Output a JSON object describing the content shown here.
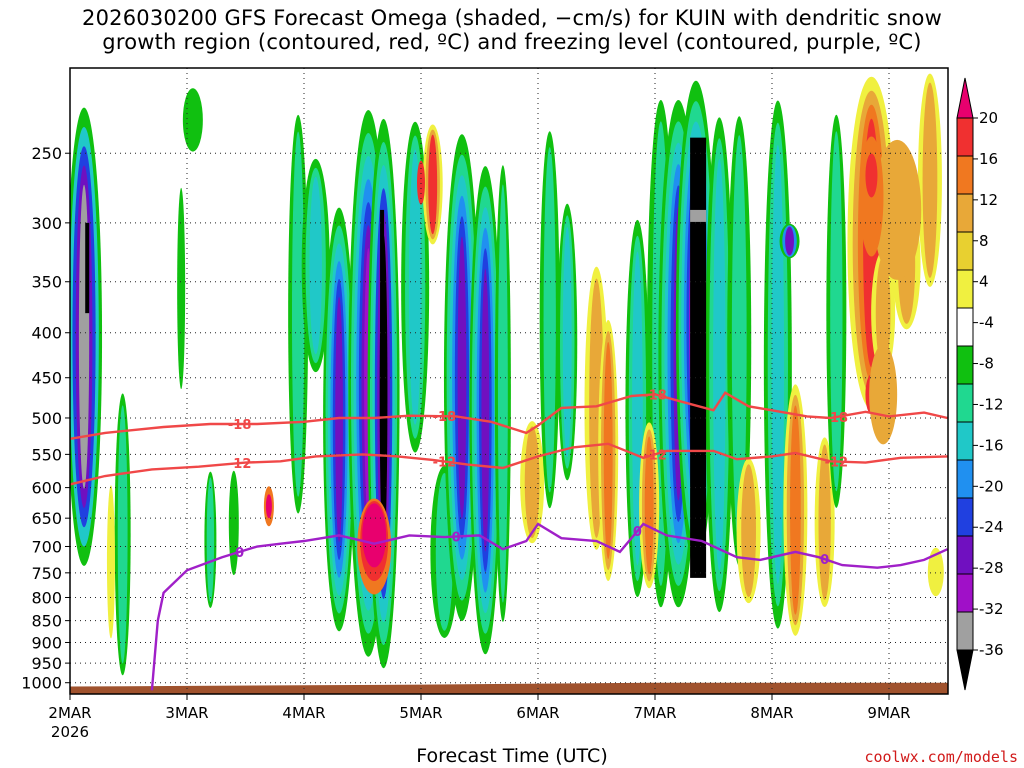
{
  "title_line1": "2026030200 GFS Forecast Omega (shaded, −cm/s) for KUIN with dendritic snow",
  "title_line2": "growth region (contoured, red, ºC) and freezing level (contoured, purple, ºC)",
  "xlabel": "Forecast Time (UTC)",
  "credit": "coolwx.com/models",
  "chart_data": {
    "type": "heatmap",
    "title": "2026030200 GFS Forecast Omega (shaded, −cm/s) for KUIN with dendritic snow growth region (contoured, red, ºC) and freezing level (contoured, purple, ºC)",
    "xlabel": "Forecast Time (UTC)",
    "ylabel": "",
    "x_ticks": [
      {
        "label": "2MAR",
        "sub": "2026",
        "day": 0
      },
      {
        "label": "3MAR",
        "day": 1
      },
      {
        "label": "4MAR",
        "day": 2
      },
      {
        "label": "5MAR",
        "day": 3
      },
      {
        "label": "6MAR",
        "day": 4
      },
      {
        "label": "7MAR",
        "day": 5
      },
      {
        "label": "8MAR",
        "day": 6
      },
      {
        "label": "9MAR",
        "day": 7
      }
    ],
    "xlim_days": [
      0,
      7.5
    ],
    "y_ticks": [
      250,
      300,
      350,
      400,
      450,
      500,
      550,
      600,
      650,
      700,
      750,
      800,
      850,
      900,
      950,
      1000
    ],
    "ylim_hpa": [
      1030,
      200
    ],
    "grid": true,
    "colorbar": {
      "labels": [
        20,
        16,
        12,
        8,
        4,
        -4,
        -8,
        -12,
        -16,
        -20,
        -24,
        -28,
        -32,
        -36
      ],
      "colors": [
        "#e8006e",
        "#f03030",
        "#f07820",
        "#e8a838",
        "#e8d030",
        "#f0f040",
        "#ffffff",
        "#10c010",
        "#20d890",
        "#20c8c8",
        "#2090f0",
        "#2040e0",
        "#7010c0",
        "#a010c8",
        "#a0a0a0",
        "#000000"
      ]
    },
    "contours": [
      {
        "label": "-18",
        "color": "#f04848",
        "points": [
          [
            0,
            528
          ],
          [
            0.3,
            520
          ],
          [
            0.8,
            512
          ],
          [
            1.2,
            508
          ],
          [
            1.6,
            508
          ],
          [
            2.0,
            505
          ],
          [
            2.3,
            500
          ],
          [
            2.6,
            500
          ],
          [
            2.9,
            497
          ],
          [
            3.3,
            498
          ],
          [
            3.6,
            505
          ],
          [
            3.9,
            520
          ],
          [
            4.0,
            510
          ],
          [
            4.2,
            487
          ],
          [
            4.5,
            485
          ],
          [
            4.8,
            472
          ],
          [
            5.0,
            470
          ],
          [
            5.2,
            478
          ],
          [
            5.5,
            490
          ],
          [
            5.6,
            468
          ],
          [
            5.8,
            485
          ],
          [
            6.0,
            490
          ],
          [
            6.3,
            498
          ],
          [
            6.5,
            500
          ],
          [
            6.8,
            492
          ],
          [
            7.0,
            498
          ],
          [
            7.3,
            493
          ],
          [
            7.5,
            500
          ]
        ]
      },
      {
        "label": "-12",
        "color": "#f04848",
        "points": [
          [
            0,
            595
          ],
          [
            0.3,
            582
          ],
          [
            0.7,
            572
          ],
          [
            1.1,
            568
          ],
          [
            1.5,
            562
          ],
          [
            1.8,
            560
          ],
          [
            2.1,
            553
          ],
          [
            2.5,
            550
          ],
          [
            2.8,
            553
          ],
          [
            3.1,
            558
          ],
          [
            3.4,
            565
          ],
          [
            3.7,
            570
          ],
          [
            4.0,
            553
          ],
          [
            4.3,
            540
          ],
          [
            4.6,
            535
          ],
          [
            4.9,
            555
          ],
          [
            5.1,
            545
          ],
          [
            5.3,
            545
          ],
          [
            5.5,
            545
          ],
          [
            5.7,
            557
          ],
          [
            6.0,
            553
          ],
          [
            6.2,
            548
          ],
          [
            6.5,
            560
          ],
          [
            6.8,
            562
          ],
          [
            7.1,
            555
          ],
          [
            7.5,
            553
          ]
        ]
      },
      {
        "label": "0",
        "color": "#a020c8",
        "points": [
          [
            0.7,
            1020
          ],
          [
            0.75,
            850
          ],
          [
            0.8,
            790
          ],
          [
            1.0,
            745
          ],
          [
            1.3,
            720
          ],
          [
            1.6,
            700
          ],
          [
            1.8,
            695
          ],
          [
            2.0,
            690
          ],
          [
            2.3,
            680
          ],
          [
            2.6,
            695
          ],
          [
            2.9,
            680
          ],
          [
            3.2,
            683
          ],
          [
            3.5,
            680
          ],
          [
            3.7,
            705
          ],
          [
            3.9,
            690
          ],
          [
            4.0,
            660
          ],
          [
            4.2,
            685
          ],
          [
            4.5,
            690
          ],
          [
            4.7,
            710
          ],
          [
            4.9,
            660
          ],
          [
            5.1,
            680
          ],
          [
            5.4,
            690
          ],
          [
            5.7,
            720
          ],
          [
            5.9,
            725
          ],
          [
            6.2,
            710
          ],
          [
            6.4,
            720
          ],
          [
            6.6,
            735
          ],
          [
            6.9,
            740
          ],
          [
            7.1,
            735
          ],
          [
            7.3,
            725
          ],
          [
            7.5,
            705
          ]
        ]
      }
    ],
    "shaded_features": [
      {
        "name": "ascent-core-day0",
        "day_start": 0.05,
        "day_end": 0.28,
        "p_top": 270,
        "p_bottom": 720,
        "peak": -32
      },
      {
        "name": "descent-core-day2.6",
        "day_start": 2.45,
        "day_end": 2.7,
        "p_top": 620,
        "p_bottom": 780,
        "peak": 20
      },
      {
        "name": "ascent-core-day2.7",
        "day_start": 2.52,
        "day_end": 2.75,
        "p_top": 280,
        "p_bottom": 510,
        "peak": -36
      },
      {
        "name": "ascent-core-day5.35",
        "day_start": 5.2,
        "day_end": 5.48,
        "p_top": 200,
        "p_bottom": 760,
        "peak": -36
      },
      {
        "name": "descent-core-day6.85",
        "day_start": 6.7,
        "day_end": 7.0,
        "p_top": 200,
        "p_bottom": 500,
        "peak": 16
      }
    ]
  }
}
